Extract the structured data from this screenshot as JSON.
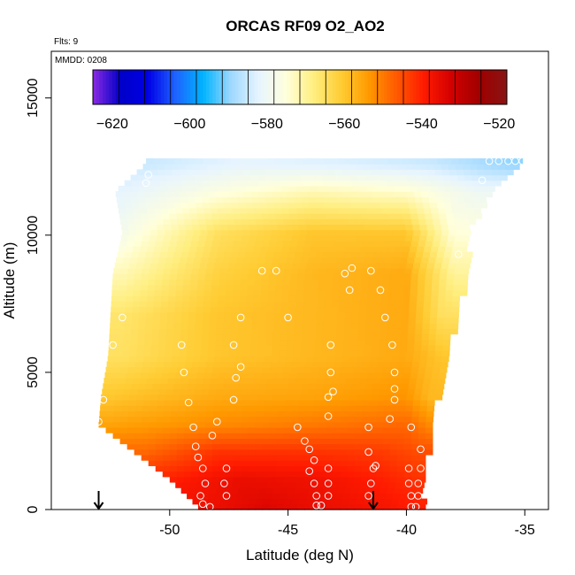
{
  "chart_data": {
    "type": "heatmap",
    "title": "ORCAS RF09 O2_AO2",
    "flights_label": "Flts: 9",
    "mmdd_label": "MMDD: 0208",
    "xlabel": "Latitude (deg N)",
    "ylabel": "Altitude (m)",
    "xlim": [
      -55,
      -34
    ],
    "ylim": [
      0,
      16700
    ],
    "x_ticks": [
      -50,
      -45,
      -40,
      -35
    ],
    "y_ticks": [
      0,
      5000,
      10000,
      15000
    ],
    "colorbar": {
      "range": [
        -625,
        -518
      ],
      "ticks": [
        -620,
        -600,
        -580,
        -560,
        -540,
        -520
      ],
      "colors": [
        "#8a2be2",
        "#0000c8",
        "#0000e6",
        "#1e64ff",
        "#00b4ff",
        "#9ed8ff",
        "#e6f4ff",
        "#ffffdc",
        "#ffee80",
        "#ffcc33",
        "#ff9900",
        "#ff5a00",
        "#ff1a00",
        "#d20000",
        "#a00000",
        "#881414"
      ]
    },
    "field_description": "interpolated O2_AO2 values along latitude-altitude curtain",
    "field_rows": [
      {
        "alt": 12500,
        "lat_min": -51.0,
        "lat_max": -35.3,
        "values_lat": [
          -51,
          -47,
          -43,
          -39,
          -35.5
        ],
        "values": [
          -585,
          -582,
          -583,
          -585,
          -590
        ]
      },
      {
        "alt": 11500,
        "lat_min": -52.3,
        "lat_max": -36.5,
        "values_lat": [
          -52,
          -48,
          -44,
          -40,
          -37
        ],
        "values": [
          -582,
          -576,
          -572,
          -574,
          -580
        ]
      },
      {
        "alt": 10000,
        "lat_min": -52.0,
        "lat_max": -37.5,
        "values_lat": [
          -52,
          -48,
          -44,
          -40,
          -38
        ],
        "values": [
          -578,
          -565,
          -560,
          -560,
          -575
        ]
      },
      {
        "alt": 8500,
        "lat_min": -52.4,
        "lat_max": -37.5,
        "values_lat": [
          -52,
          -48,
          -44,
          -40,
          -38
        ],
        "values": [
          -572,
          -562,
          -558,
          -556,
          -570
        ]
      },
      {
        "alt": 7000,
        "lat_min": -52.5,
        "lat_max": -38.0,
        "values_lat": [
          -52,
          -48,
          -44,
          -40,
          -38.5
        ],
        "values": [
          -566,
          -560,
          -558,
          -556,
          -565
        ]
      },
      {
        "alt": 5500,
        "lat_min": -52.6,
        "lat_max": -38.3,
        "values_lat": [
          -52,
          -48,
          -44,
          -40,
          -38.5
        ],
        "values": [
          -565,
          -560,
          -558,
          -556,
          -560
        ]
      },
      {
        "alt": 4000,
        "lat_min": -52.9,
        "lat_max": -38.8,
        "values_lat": [
          -52.5,
          -48,
          -44,
          -40,
          -39
        ],
        "values": [
          -560,
          -556,
          -555,
          -553,
          -558
        ]
      },
      {
        "alt": 3000,
        "lat_min": -53.0,
        "lat_max": -39.0,
        "values_lat": [
          -52.5,
          -48,
          -44,
          -40,
          -39
        ],
        "values": [
          -555,
          -552,
          -550,
          -548,
          -552
        ]
      },
      {
        "alt": 2000,
        "lat_min": -51.5,
        "lat_max": -39.2,
        "values_lat": [
          -51,
          -48,
          -44,
          -41,
          -39.5
        ],
        "values": [
          -548,
          -542,
          -542,
          -543,
          -545
        ]
      },
      {
        "alt": 1000,
        "lat_min": -50.0,
        "lat_max": -39.4,
        "values_lat": [
          -50,
          -47,
          -44,
          -41,
          -39.5
        ],
        "values": [
          -540,
          -536,
          -537,
          -540,
          -542
        ]
      },
      {
        "alt": 0,
        "lat_min": -48.8,
        "lat_max": -39.4,
        "values_lat": [
          -48.5,
          -46,
          -44,
          -41,
          -39.5
        ],
        "values": [
          -537,
          -534,
          -536,
          -538,
          -540
        ]
      }
    ],
    "flight_points": [
      {
        "lat": -36.1,
        "alt": 12700
      },
      {
        "lat": -35.7,
        "alt": 12700
      },
      {
        "lat": -35.4,
        "alt": 12700
      },
      {
        "lat": -35.1,
        "alt": 12700
      },
      {
        "lat": -36.5,
        "alt": 12700
      },
      {
        "lat": -36.8,
        "alt": 12000
      },
      {
        "lat": -50.9,
        "alt": 12200
      },
      {
        "lat": -51.0,
        "alt": 11900
      },
      {
        "lat": -37.8,
        "alt": 9300
      },
      {
        "lat": -46.1,
        "alt": 8700
      },
      {
        "lat": -45.5,
        "alt": 8700
      },
      {
        "lat": -42.3,
        "alt": 8800
      },
      {
        "lat": -42.6,
        "alt": 8600
      },
      {
        "lat": -41.5,
        "alt": 8700
      },
      {
        "lat": -42.4,
        "alt": 8000
      },
      {
        "lat": -41.1,
        "alt": 8000
      },
      {
        "lat": -52.0,
        "alt": 7000
      },
      {
        "lat": -47.0,
        "alt": 7000
      },
      {
        "lat": -45.0,
        "alt": 7000
      },
      {
        "lat": -40.9,
        "alt": 7000
      },
      {
        "lat": -52.4,
        "alt": 6000
      },
      {
        "lat": -49.5,
        "alt": 6000
      },
      {
        "lat": -47.3,
        "alt": 6000
      },
      {
        "lat": -43.2,
        "alt": 6000
      },
      {
        "lat": -40.6,
        "alt": 6000
      },
      {
        "lat": -47.0,
        "alt": 5200
      },
      {
        "lat": -49.4,
        "alt": 5000
      },
      {
        "lat": -47.2,
        "alt": 4800
      },
      {
        "lat": -43.2,
        "alt": 5000
      },
      {
        "lat": -40.5,
        "alt": 5000
      },
      {
        "lat": -43.1,
        "alt": 4300
      },
      {
        "lat": -40.5,
        "alt": 4400
      },
      {
        "lat": -52.8,
        "alt": 4000
      },
      {
        "lat": -49.2,
        "alt": 3900
      },
      {
        "lat": -47.3,
        "alt": 4000
      },
      {
        "lat": -43.3,
        "alt": 4100
      },
      {
        "lat": -40.5,
        "alt": 4000
      },
      {
        "lat": -53.0,
        "alt": 3200
      },
      {
        "lat": -48.0,
        "alt": 3200
      },
      {
        "lat": -43.3,
        "alt": 3400
      },
      {
        "lat": -40.7,
        "alt": 3300
      },
      {
        "lat": -49.0,
        "alt": 3000
      },
      {
        "lat": -44.6,
        "alt": 3000
      },
      {
        "lat": -41.6,
        "alt": 3000
      },
      {
        "lat": -39.8,
        "alt": 3000
      },
      {
        "lat": -48.2,
        "alt": 2700
      },
      {
        "lat": -44.3,
        "alt": 2500
      },
      {
        "lat": -48.9,
        "alt": 2300
      },
      {
        "lat": -44.1,
        "alt": 2200
      },
      {
        "lat": -41.6,
        "alt": 2100
      },
      {
        "lat": -39.4,
        "alt": 2200
      },
      {
        "lat": -48.8,
        "alt": 1900
      },
      {
        "lat": -43.9,
        "alt": 1800
      },
      {
        "lat": -41.3,
        "alt": 1600
      },
      {
        "lat": -48.6,
        "alt": 1500
      },
      {
        "lat": -47.6,
        "alt": 1500
      },
      {
        "lat": -44.1,
        "alt": 1400
      },
      {
        "lat": -43.3,
        "alt": 1500
      },
      {
        "lat": -41.4,
        "alt": 1500
      },
      {
        "lat": -39.9,
        "alt": 1500
      },
      {
        "lat": -39.4,
        "alt": 1500
      },
      {
        "lat": -48.5,
        "alt": 950
      },
      {
        "lat": -47.7,
        "alt": 950
      },
      {
        "lat": -43.9,
        "alt": 950
      },
      {
        "lat": -43.3,
        "alt": 950
      },
      {
        "lat": -41.5,
        "alt": 950
      },
      {
        "lat": -39.9,
        "alt": 950
      },
      {
        "lat": -39.5,
        "alt": 950
      },
      {
        "lat": -48.7,
        "alt": 500
      },
      {
        "lat": -47.6,
        "alt": 500
      },
      {
        "lat": -43.8,
        "alt": 500
      },
      {
        "lat": -43.3,
        "alt": 500
      },
      {
        "lat": -41.6,
        "alt": 500
      },
      {
        "lat": -39.8,
        "alt": 500
      },
      {
        "lat": -39.5,
        "alt": 500
      },
      {
        "lat": -48.6,
        "alt": 200
      },
      {
        "lat": -48.3,
        "alt": 100
      },
      {
        "lat": -43.8,
        "alt": 150
      },
      {
        "lat": -43.6,
        "alt": 150
      },
      {
        "lat": -39.8,
        "alt": 100
      },
      {
        "lat": -39.6,
        "alt": 100
      }
    ],
    "arrows": [
      {
        "lat": -53.0,
        "alt": 0
      },
      {
        "lat": -41.4,
        "alt": 0
      }
    ]
  }
}
